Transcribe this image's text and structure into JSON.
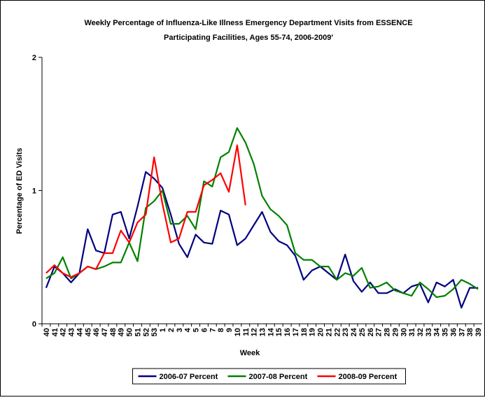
{
  "chart_data": {
    "type": "line",
    "title": [
      "Weekly Percentage of Influenza-Like Illness Emergency Department Visits from ESSENCE",
      "Participating Facilities, Ages 55-74, 2006-2009'"
    ],
    "x_label": "Week",
    "y_label": "Percentage of ED Visits",
    "categories": [
      "40",
      "41",
      "42",
      "43",
      "44",
      "45",
      "46",
      "47",
      "48",
      "49",
      "50",
      "51",
      "52",
      "53",
      "1",
      "2",
      "3",
      "4",
      "5",
      "6",
      "7",
      "8",
      "9",
      "10",
      "11",
      "12",
      "13",
      "14",
      "15",
      "16",
      "17",
      "18",
      "19",
      "20",
      "21",
      "22",
      "23",
      "24",
      "25",
      "26",
      "27",
      "28",
      "29",
      "30",
      "31",
      "32",
      "33",
      "34",
      "35",
      "36",
      "37",
      "38",
      "39"
    ],
    "ylim": [
      0,
      2
    ],
    "yticks": [
      0,
      1,
      2
    ],
    "grid": false,
    "legend": "bottom",
    "series": [
      {
        "name": "2006-07 Percent",
        "color": "#000080",
        "values": [
          0.27,
          0.43,
          0.38,
          0.31,
          0.38,
          0.71,
          0.55,
          0.53,
          0.82,
          0.84,
          0.64,
          0.88,
          1.14,
          1.09,
          1.02,
          0.82,
          0.6,
          0.5,
          0.67,
          0.61,
          0.6,
          0.85,
          0.82,
          0.59,
          0.64,
          0.74,
          0.84,
          0.69,
          0.62,
          0.59,
          0.51,
          0.33,
          0.4,
          0.43,
          0.38,
          0.33,
          0.52,
          0.32,
          0.24,
          0.31,
          0.23,
          0.23,
          0.26,
          0.23,
          0.28,
          0.3,
          0.16,
          0.31,
          0.28,
          0.33,
          0.12,
          0.27,
          0.27
        ]
      },
      {
        "name": "2007-08 Percent",
        "color": "#008000",
        "values": [
          0.34,
          0.38,
          0.5,
          0.34,
          0.38,
          0.43,
          0.41,
          0.43,
          0.46,
          0.46,
          0.61,
          0.47,
          0.87,
          0.92,
          1.0,
          0.75,
          0.75,
          0.81,
          0.71,
          1.07,
          1.03,
          1.25,
          1.29,
          1.47,
          1.36,
          1.2,
          0.96,
          0.86,
          0.81,
          0.74,
          0.53,
          0.48,
          0.48,
          0.43,
          0.43,
          0.33,
          0.38,
          0.36,
          0.42,
          0.27,
          0.28,
          0.31,
          0.25,
          0.23,
          0.21,
          0.31,
          0.26,
          0.2,
          0.21,
          0.26,
          0.33,
          0.3,
          0.26
        ]
      },
      {
        "name": "2008-09 Percent",
        "color": "#ff0000",
        "values": [
          0.38,
          0.44,
          0.38,
          0.35,
          0.38,
          0.43,
          0.41,
          0.53,
          0.53,
          0.7,
          0.61,
          0.76,
          0.82,
          1.25,
          0.9,
          0.61,
          0.64,
          0.84,
          0.84,
          1.04,
          1.08,
          1.13,
          0.99,
          1.34,
          0.89,
          null,
          null,
          null,
          null,
          null,
          null,
          null,
          null,
          null,
          null,
          null,
          null,
          null,
          null,
          null,
          null,
          null,
          null,
          null,
          null,
          null,
          null,
          null,
          null,
          null,
          null,
          null,
          null
        ]
      }
    ]
  }
}
